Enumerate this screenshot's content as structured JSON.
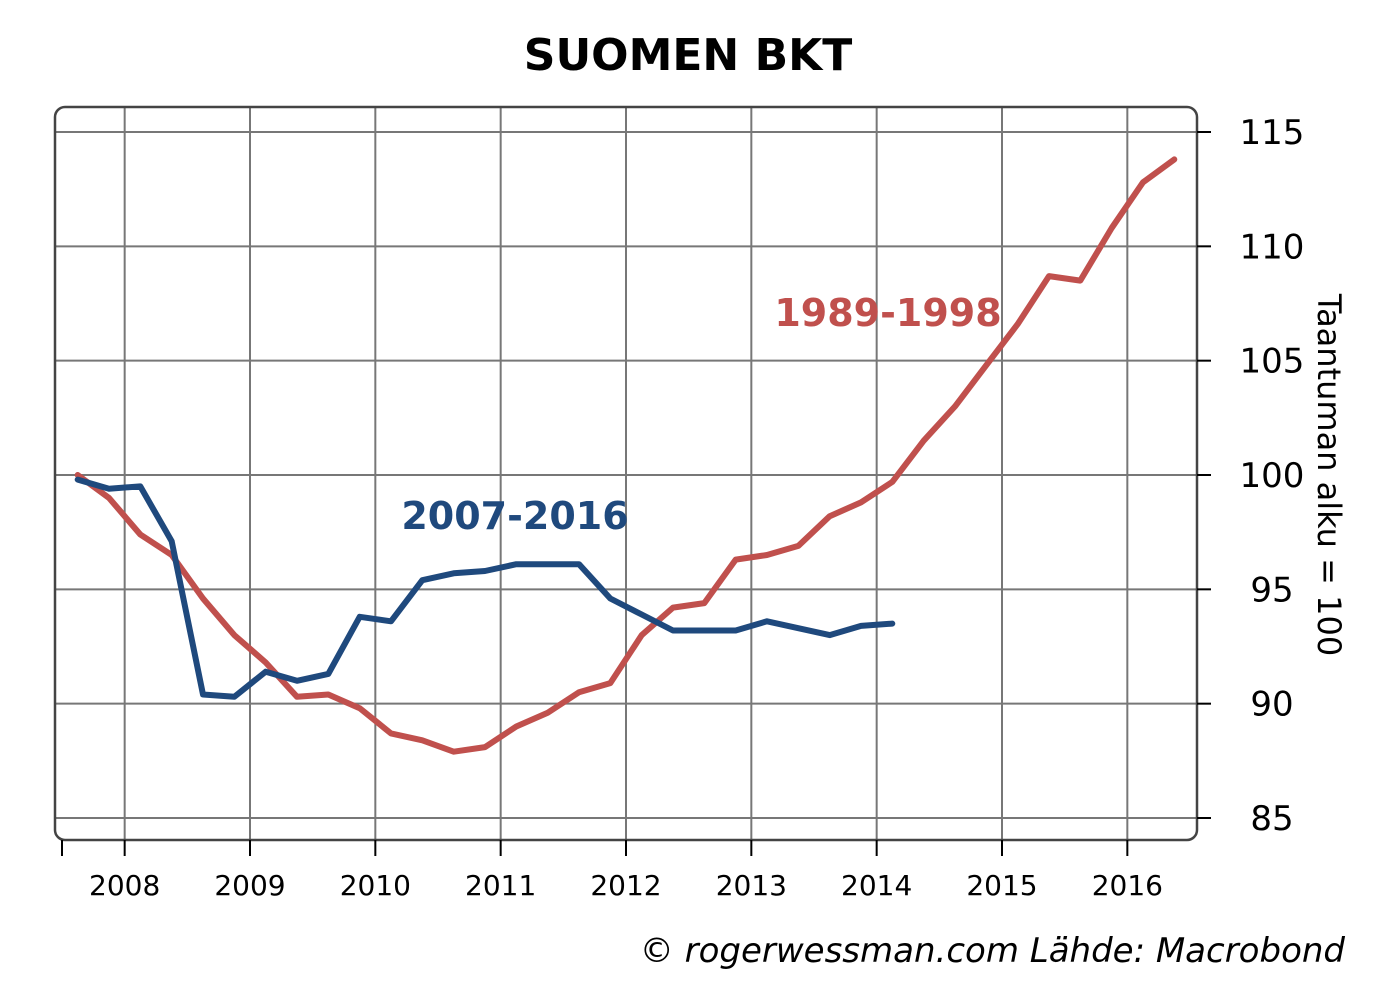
{
  "chart_data": {
    "type": "line",
    "title": "SUOMEN BKT",
    "ylabel": "Taantuman alku = 100",
    "ylim": [
      85,
      115
    ],
    "y_ticks": [
      "85",
      "90",
      "95",
      "100",
      "105",
      "110",
      "115"
    ],
    "x_tick_labels": [
      "2008",
      "2009",
      "2010",
      "2011",
      "2012",
      "2013",
      "2014",
      "2015",
      "2016"
    ],
    "xlim": [
      2007.5,
      2016.5
    ],
    "grid": true,
    "y_axis_position": "right",
    "series": [
      {
        "name": "1989-1998",
        "color": "#c0504d",
        "x": [
          2007.625,
          2007.875,
          2008.125,
          2008.375,
          2008.625,
          2008.875,
          2009.125,
          2009.375,
          2009.625,
          2009.875,
          2010.125,
          2010.375,
          2010.625,
          2010.875,
          2011.125,
          2011.375,
          2011.625,
          2011.875,
          2012.125,
          2012.375,
          2012.625,
          2012.875,
          2013.125,
          2013.375,
          2013.625,
          2013.875,
          2014.125,
          2014.375,
          2014.625,
          2014.875,
          2015.125,
          2015.375,
          2015.625,
          2015.875,
          2016.125,
          2016.375
        ],
        "values": [
          100.0,
          99.0,
          97.4,
          96.5,
          94.6,
          93.0,
          91.8,
          90.3,
          90.4,
          89.8,
          88.7,
          88.4,
          87.9,
          88.1,
          89.0,
          89.6,
          90.5,
          90.9,
          93.0,
          94.2,
          94.4,
          96.3,
          96.5,
          96.9,
          98.2,
          98.8,
          99.7,
          101.5,
          103.0,
          104.8,
          106.6,
          108.7,
          108.5,
          110.8,
          112.8,
          113.8
        ]
      },
      {
        "name": "2007-2016",
        "color": "#1f497d",
        "x": [
          2007.625,
          2007.875,
          2008.125,
          2008.375,
          2008.625,
          2008.875,
          2009.125,
          2009.375,
          2009.625,
          2009.875,
          2010.125,
          2010.375,
          2010.625,
          2010.875,
          2011.125,
          2011.375,
          2011.625,
          2011.875,
          2012.125,
          2012.375,
          2012.625,
          2012.875,
          2013.125,
          2013.375,
          2013.625,
          2013.875,
          2014.125
        ],
        "values": [
          99.8,
          99.4,
          99.5,
          97.1,
          90.4,
          90.3,
          91.4,
          91.0,
          91.3,
          93.8,
          93.6,
          95.4,
          95.7,
          95.8,
          96.1,
          96.1,
          96.1,
          94.6,
          93.9,
          93.2,
          93.2,
          93.2,
          93.6,
          93.3,
          93.0,
          93.4,
          93.5
        ]
      }
    ],
    "annotations": [
      "2007-2016",
      "1989-1998"
    ],
    "credit": "© rogerwessman.com Lähde: Macrobond"
  }
}
